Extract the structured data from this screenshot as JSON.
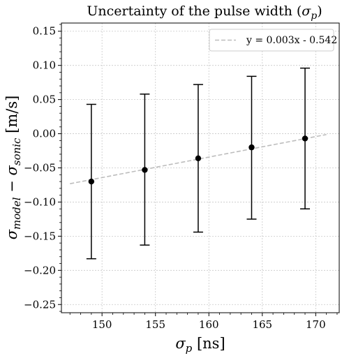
{
  "chart_data": {
    "type": "scatter",
    "title": "Uncertainty of the pulse width (σp)",
    "title_main": "Uncertainty of the pulse width (",
    "title_symbol": "σ",
    "title_sub": "p",
    "title_close": ")",
    "xlabel": "σp [ns]",
    "xlabel_symbol": "σ",
    "xlabel_sub": "p",
    "xlabel_unit": " [ns]",
    "ylabel": "σmodel − σsonic [m/s]",
    "ylabel_parts": {
      "sym1": "σ",
      "sub1": "model",
      "op": " − ",
      "sym2": "σ",
      "sub2": "sonic",
      "unit": " [m/s]"
    },
    "xlim": [
      146.2,
      172.2
    ],
    "ylim": [
      -0.262,
      0.162
    ],
    "xticks": [
      150,
      155,
      160,
      165,
      170
    ],
    "yticks": [
      -0.25,
      -0.2,
      -0.15,
      -0.1,
      -0.05,
      0.0,
      0.05,
      0.1,
      0.15
    ],
    "xtick_labels": [
      "150",
      "155",
      "160",
      "165",
      "170"
    ],
    "ytick_labels": [
      "−0.25",
      "−0.20",
      "−0.15",
      "−0.10",
      "−0.05",
      "0.00",
      "0.05",
      "0.10",
      "0.15"
    ],
    "grid": true,
    "legend_position": "top-right",
    "points": [
      {
        "x": 149,
        "y": -0.07,
        "yerr_low": -0.183,
        "yerr_high": 0.043
      },
      {
        "x": 154,
        "y": -0.053,
        "yerr_low": -0.163,
        "yerr_high": 0.058
      },
      {
        "x": 159,
        "y": -0.036,
        "yerr_low": -0.144,
        "yerr_high": 0.072
      },
      {
        "x": 164,
        "y": -0.02,
        "yerr_low": -0.125,
        "yerr_high": 0.084
      },
      {
        "x": 169,
        "y": -0.007,
        "yerr_low": -0.11,
        "yerr_high": 0.096
      }
    ],
    "fit_line": {
      "name": "y = 0.003x - 0.542",
      "slope": 0.003,
      "intercept": -0.542,
      "x_range": [
        147,
        171
      ],
      "color": "#bdbdbd"
    },
    "point_color": "#000000",
    "grid_color": "#c8c8c8"
  }
}
